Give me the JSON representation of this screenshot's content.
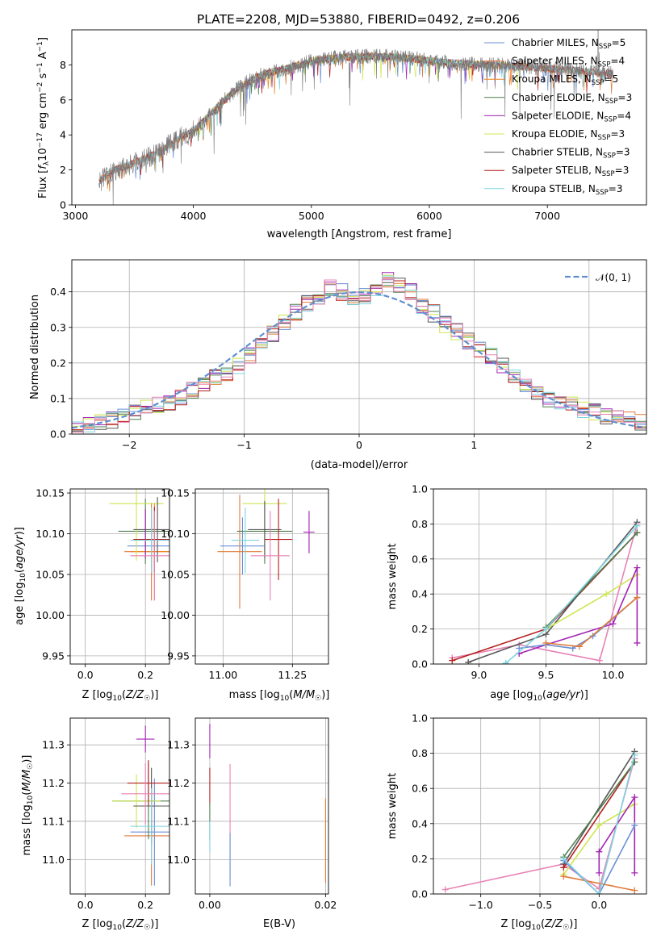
{
  "title": "PLATE=2208, MJD=53880, FIBERID=0492, z=0.206",
  "colors": {
    "Chabrier MILES": "#6a8fd6",
    "Salpeter MILES": "#e07b39",
    "Kroupa MILES": "#ef8424",
    "Chabrier ELODIE": "#4f7f4f",
    "Salpeter ELODIE": "#a323b4",
    "Kroupa ELODIE": "#cfe553",
    "Chabrier STELIB": "#555555",
    "Salpeter STELIB": "#b51e1e",
    "Kroupa STELIB": "#7fd3df",
    "pink": "#e883b5",
    "normal": "#5f8fd0"
  },
  "chart_data": [
    {
      "type": "line",
      "panel": "spectrum",
      "xlabel": "wavelength [Angstrom, rest frame]",
      "ylabel": "Flux [f_λ 10^-17 erg cm^-2 s^-1 A^-1]",
      "xlim": [
        2970,
        7840
      ],
      "ylim": [
        0,
        10
      ],
      "xticks": [
        3000,
        4000,
        5000,
        6000,
        7000
      ],
      "yticks": [
        0,
        2,
        4,
        6,
        8
      ],
      "continuum_x": [
        3200,
        3300,
        3500,
        3700,
        3900,
        4000,
        4200,
        4400,
        4600,
        4800,
        5000,
        5200,
        5500,
        5800,
        6200,
        6500,
        6800,
        7200,
        7500
      ],
      "continuum_y": [
        1.3,
        1.9,
        2.4,
        3.0,
        3.9,
        4.2,
        5.6,
        6.8,
        7.5,
        7.8,
        8.2,
        8.4,
        8.5,
        8.4,
        8.1,
        8.0,
        7.9,
        7.7,
        7.5
      ],
      "legend": [
        {
          "label": "Chabrier MILES, N",
          "sub": "SSP",
          "tail": "=5"
        },
        {
          "label": "Salpeter MILES, N",
          "sub": "SSP",
          "tail": "=4"
        },
        {
          "label": "Kroupa MILES, N",
          "sub": "SSP",
          "tail": "=5"
        },
        {
          "label": "Chabrier ELODIE, N",
          "sub": "SSP",
          "tail": "=3"
        },
        {
          "label": "Salpeter ELODIE, N",
          "sub": "SSP",
          "tail": "=4"
        },
        {
          "label": "Kroupa ELODIE, N",
          "sub": "SSP",
          "tail": "=3"
        },
        {
          "label": "Chabrier STELIB, N",
          "sub": "SSP",
          "tail": "=3"
        },
        {
          "label": "Salpeter STELIB, N",
          "sub": "SSP",
          "tail": "=3"
        },
        {
          "label": "Kroupa STELIB, N",
          "sub": "SSP",
          "tail": "=3"
        }
      ]
    },
    {
      "type": "line",
      "panel": "residual-histogram",
      "xlabel": "(data-model)/error",
      "ylabel": "Normed distribution",
      "xlim": [
        -2.5,
        2.5
      ],
      "ylim": [
        0,
        0.49
      ],
      "xticks": [
        -2,
        -1,
        0,
        1,
        2
      ],
      "yticks": [
        0.0,
        0.1,
        0.2,
        0.3,
        0.4
      ],
      "legend": "𝒩(0, 1)",
      "bin_centers": [
        -2.45,
        -2.35,
        -2.25,
        -2.15,
        -2.05,
        -1.95,
        -1.85,
        -1.75,
        -1.65,
        -1.55,
        -1.45,
        -1.35,
        -1.25,
        -1.15,
        -1.05,
        -0.95,
        -0.85,
        -0.75,
        -0.65,
        -0.55,
        -0.45,
        -0.35,
        -0.25,
        -0.15,
        -0.05,
        0.05,
        0.15,
        0.25,
        0.35,
        0.45,
        0.55,
        0.65,
        0.75,
        0.85,
        0.95,
        1.05,
        1.15,
        1.25,
        1.35,
        1.45,
        1.55,
        1.65,
        1.75,
        1.85,
        1.95,
        2.05,
        2.15,
        2.25,
        2.35,
        2.45
      ],
      "mean_hist": [
        0.018,
        0.025,
        0.032,
        0.04,
        0.05,
        0.06,
        0.07,
        0.08,
        0.09,
        0.1,
        0.125,
        0.145,
        0.16,
        0.175,
        0.19,
        0.22,
        0.25,
        0.28,
        0.31,
        0.34,
        0.37,
        0.39,
        0.41,
        0.4,
        0.38,
        0.39,
        0.41,
        0.43,
        0.42,
        0.4,
        0.36,
        0.34,
        0.31,
        0.29,
        0.26,
        0.24,
        0.22,
        0.19,
        0.16,
        0.13,
        0.11,
        0.1,
        0.09,
        0.08,
        0.07,
        0.06,
        0.05,
        0.045,
        0.04,
        0.035
      ]
    },
    {
      "type": "scatter",
      "panel": "age-vs-Z",
      "xlabel": "Z [log10(Z/Z☉)]",
      "ylabel": "age  [log10(age/yr)]",
      "xlim": [
        -0.05,
        0.28
      ],
      "ylim": [
        9.94,
        10.155
      ],
      "xticks": [
        0.0,
        0.2
      ],
      "yticks": [
        9.95,
        10.0,
        10.05,
        10.1,
        10.15
      ],
      "points": [
        {
          "model": "Chabrier MILES",
          "x": 0.22,
          "y": 10.085,
          "xerr": 0.08,
          "yerr": 0.035
        },
        {
          "model": "Salpeter MILES",
          "x": 0.22,
          "y": 10.078,
          "xerr": 0.09,
          "yerr": 0.06
        },
        {
          "model": "Kroupa MILES",
          "x": 0.23,
          "y": 10.078,
          "xerr": 0.08,
          "yerr": 0.06
        },
        {
          "model": "Chabrier ELODIE",
          "x": 0.2,
          "y": 10.103,
          "xerr": 0.09,
          "yerr": 0.04
        },
        {
          "model": "Salpeter ELODIE",
          "x": 0.2,
          "y": 10.1,
          "xerr": 0.0,
          "yerr": 0.03
        },
        {
          "model": "Kroupa ELODIE",
          "x": 0.17,
          "y": 10.137,
          "xerr": 0.09,
          "yerr": 0.07
        },
        {
          "model": "Chabrier STELIB",
          "x": 0.24,
          "y": 10.105,
          "xerr": 0.08,
          "yerr": 0.04
        },
        {
          "model": "Salpeter STELIB",
          "x": 0.23,
          "y": 10.093,
          "xerr": 0.07,
          "yerr": 0.04
        },
        {
          "model": "Kroupa STELIB",
          "x": 0.22,
          "y": 10.092,
          "xerr": 0.07,
          "yerr": 0.04
        },
        {
          "model": "pink",
          "x": 0.23,
          "y": 10.073,
          "xerr": 0.08,
          "yerr": 0.055
        }
      ]
    },
    {
      "type": "scatter",
      "panel": "age-vs-mass",
      "xlabel": "mass [log10(M/M☉)]",
      "ylabel": "",
      "xlim": [
        10.9,
        11.38
      ],
      "ylim": [
        9.94,
        10.155
      ],
      "xticks": [
        11.0,
        11.25
      ],
      "yticks": [
        9.95,
        10.0,
        10.05,
        10.1,
        10.15
      ],
      "points": [
        {
          "model": "Chabrier MILES",
          "x": 11.07,
          "y": 10.085,
          "xerr": 0.08,
          "yerr": 0.035
        },
        {
          "model": "Salpeter MILES",
          "x": 11.06,
          "y": 10.078,
          "xerr": 0.08,
          "yerr": 0.07
        },
        {
          "model": "Chabrier ELODIE",
          "x": 11.15,
          "y": 10.103,
          "xerr": 0.1,
          "yerr": 0.04
        },
        {
          "model": "Salpeter ELODIE",
          "x": 11.31,
          "y": 10.102,
          "xerr": 0.02,
          "yerr": 0.026
        },
        {
          "model": "Kroupa ELODIE",
          "x": 11.15,
          "y": 10.137,
          "xerr": 0.08,
          "yerr": 0.06
        },
        {
          "model": "Chabrier STELIB",
          "x": 11.15,
          "y": 10.105,
          "xerr": 0.06,
          "yerr": 0.035
        },
        {
          "model": "Salpeter STELIB",
          "x": 11.2,
          "y": 10.093,
          "xerr": 0.05,
          "yerr": 0.05
        },
        {
          "model": "Kroupa STELIB",
          "x": 11.08,
          "y": 10.092,
          "xerr": 0.05,
          "yerr": 0.04
        },
        {
          "model": "pink",
          "x": 11.17,
          "y": 10.073,
          "xerr": 0.07,
          "yerr": 0.055
        }
      ]
    },
    {
      "type": "line",
      "panel": "mass-weight-vs-age",
      "xlabel": "age  [log10(age/yr)]",
      "ylabel": "mass weight",
      "xlim": [
        8.66,
        10.25
      ],
      "ylim": [
        0,
        1
      ],
      "xticks": [
        9.0,
        9.5,
        10.0
      ],
      "yticks": [
        0.0,
        0.2,
        0.4,
        0.6,
        0.8,
        1.0
      ],
      "series": [
        {
          "model": "pink",
          "x": [
            8.8,
            9.3,
            9.9,
            10.18
          ],
          "y": [
            0.035,
            0.11,
            0.02,
            0.8
          ]
        },
        {
          "model": "Salpeter STELIB",
          "x": [
            8.8,
            9.5,
            10.18
          ],
          "y": [
            0.02,
            0.2,
            0.75
          ]
        },
        {
          "model": "Chabrier STELIB",
          "x": [
            8.92,
            9.5,
            10.18
          ],
          "y": [
            0.01,
            0.17,
            0.81
          ]
        },
        {
          "model": "Kroupa ELODIE",
          "x": [
            9.5,
            9.95,
            10.18
          ],
          "y": [
            0.2,
            0.4,
            0.51
          ]
        },
        {
          "model": "Salpeter ELODIE",
          "x": [
            9.3,
            9.5,
            10.0,
            10.18,
            10.18
          ],
          "y": [
            0.06,
            0.11,
            0.23,
            0.55,
            0.12
          ]
        },
        {
          "model": "Chabrier ELODIE",
          "x": [
            9.5,
            10.18
          ],
          "y": [
            0.21,
            0.75
          ]
        },
        {
          "model": "Chabrier MILES",
          "x": [
            9.3,
            9.5,
            9.7,
            9.85,
            10.18
          ],
          "y": [
            0.09,
            0.11,
            0.09,
            0.16,
            0.38
          ]
        },
        {
          "model": "Salpeter MILES",
          "x": [
            9.5,
            9.75,
            10.18
          ],
          "y": [
            0.12,
            0.1,
            0.38
          ]
        },
        {
          "model": "Kroupa STELIB",
          "x": [
            9.2,
            9.5,
            10.18
          ],
          "y": [
            0.005,
            0.2,
            0.79
          ]
        }
      ]
    },
    {
      "type": "scatter",
      "panel": "mass-vs-Z",
      "xlabel": "Z [log10(Z/Z☉)]",
      "ylabel": "mass [log10(M/M☉)]",
      "xlim": [
        -0.05,
        0.28
      ],
      "ylim": [
        10.91,
        11.37
      ],
      "xticks": [
        0.0,
        0.2
      ],
      "yticks": [
        11.0,
        11.1,
        11.2,
        11.3
      ],
      "points": [
        {
          "model": "Chabrier MILES",
          "x": 0.23,
          "y": 11.072,
          "xerr": 0.08,
          "yerr": 0.14
        },
        {
          "model": "Salpeter MILES",
          "x": 0.22,
          "y": 11.062,
          "xerr": 0.09,
          "yerr": 0.13
        },
        {
          "model": "Chabrier ELODIE",
          "x": 0.21,
          "y": 11.153,
          "xerr": 0.12,
          "yerr": 0.1
        },
        {
          "model": "Salpeter ELODIE",
          "x": 0.2,
          "y": 11.315,
          "xerr": 0.03,
          "yerr": 0.035
        },
        {
          "model": "Kroupa ELODIE",
          "x": 0.17,
          "y": 11.153,
          "xerr": 0.08,
          "yerr": 0.07
        },
        {
          "model": "Chabrier STELIB",
          "x": 0.22,
          "y": 11.14,
          "xerr": 0.06,
          "yerr": 0.1
        },
        {
          "model": "Salpeter STELIB",
          "x": 0.21,
          "y": 11.2,
          "xerr": 0.07,
          "yerr": 0.06
        },
        {
          "model": "Kroupa STELIB",
          "x": 0.22,
          "y": 11.087,
          "xerr": 0.07,
          "yerr": 0.1
        },
        {
          "model": "pink",
          "x": 0.2,
          "y": 11.172,
          "xerr": 0.08,
          "yerr": 0.08
        }
      ]
    },
    {
      "type": "scatter",
      "panel": "mass-vs-EBV",
      "xlabel": "E(B-V)",
      "ylabel": "",
      "xlim": [
        -0.0025,
        0.0205
      ],
      "ylim": [
        10.91,
        11.37
      ],
      "xticks": [
        0.0,
        0.02
      ],
      "yticks": [
        11.0,
        11.1,
        11.2,
        11.3
      ],
      "points": [
        {
          "model": "Salpeter ELODIE",
          "x": 0.0,
          "y": 11.31,
          "xerr": 0,
          "yerr": 0.045
        },
        {
          "model": "Salpeter STELIB",
          "x": 0.0,
          "y": 11.19,
          "xerr": 0,
          "yerr": 0.05
        },
        {
          "model": "Chabrier ELODIE",
          "x": 0.0,
          "y": 11.1,
          "xerr": 0,
          "yerr": 0.05
        },
        {
          "model": "Kroupa STELIB",
          "x": 0.0,
          "y": 11.06,
          "xerr": 0,
          "yerr": 0.04
        },
        {
          "model": "pink",
          "x": 0.0035,
          "y": 11.1,
          "xerr": 0,
          "yerr": 0.15
        },
        {
          "model": "Chabrier MILES",
          "x": 0.0035,
          "y": 11.0,
          "xerr": 0,
          "yerr": 0.07
        },
        {
          "model": "Salpeter MILES",
          "x": 0.02,
          "y": 11.05,
          "xerr": 0,
          "yerr": 0.11
        }
      ]
    },
    {
      "type": "line",
      "panel": "mass-weight-vs-Z",
      "xlabel": "Z [log10(Z/Z☉)]",
      "ylabel": "mass weight",
      "xlim": [
        -1.4,
        0.4
      ],
      "ylim": [
        0,
        1
      ],
      "xticks": [
        -1.0,
        -0.5,
        0.0
      ],
      "yticks": [
        0.0,
        0.2,
        0.4,
        0.6,
        0.8,
        1.0
      ],
      "series": [
        {
          "model": "pink",
          "x": [
            -1.3,
            -0.3,
            0.0,
            0.3
          ],
          "y": [
            0.025,
            0.17,
            0.03,
            0.77
          ]
        },
        {
          "model": "Chabrier STELIB",
          "x": [
            -0.3,
            0.3
          ],
          "y": [
            0.17,
            0.81
          ]
        },
        {
          "model": "Salpeter STELIB",
          "x": [
            -0.3,
            0.3
          ],
          "y": [
            0.15,
            0.75
          ]
        },
        {
          "model": "Kroupa ELODIE",
          "x": [
            -0.3,
            0.0,
            0.3
          ],
          "y": [
            0.11,
            0.39,
            0.51
          ]
        },
        {
          "model": "Salpeter ELODIE",
          "x": [
            0.0,
            0.0,
            0.3,
            0.3
          ],
          "y": [
            0.12,
            0.24,
            0.55,
            0.12
          ]
        },
        {
          "model": "Chabrier ELODIE",
          "x": [
            -0.3,
            0.3
          ],
          "y": [
            0.21,
            0.75
          ]
        },
        {
          "model": "Salpeter MILES",
          "x": [
            -0.3,
            0.3
          ],
          "y": [
            0.1,
            0.02
          ]
        },
        {
          "model": "Chabrier MILES",
          "x": [
            -0.3,
            0.0,
            0.3
          ],
          "y": [
            0.19,
            0.0,
            0.39
          ]
        },
        {
          "model": "Kroupa STELIB",
          "x": [
            -0.3,
            0.0,
            0.3
          ],
          "y": [
            0.2,
            0.0,
            0.79
          ]
        }
      ]
    }
  ]
}
